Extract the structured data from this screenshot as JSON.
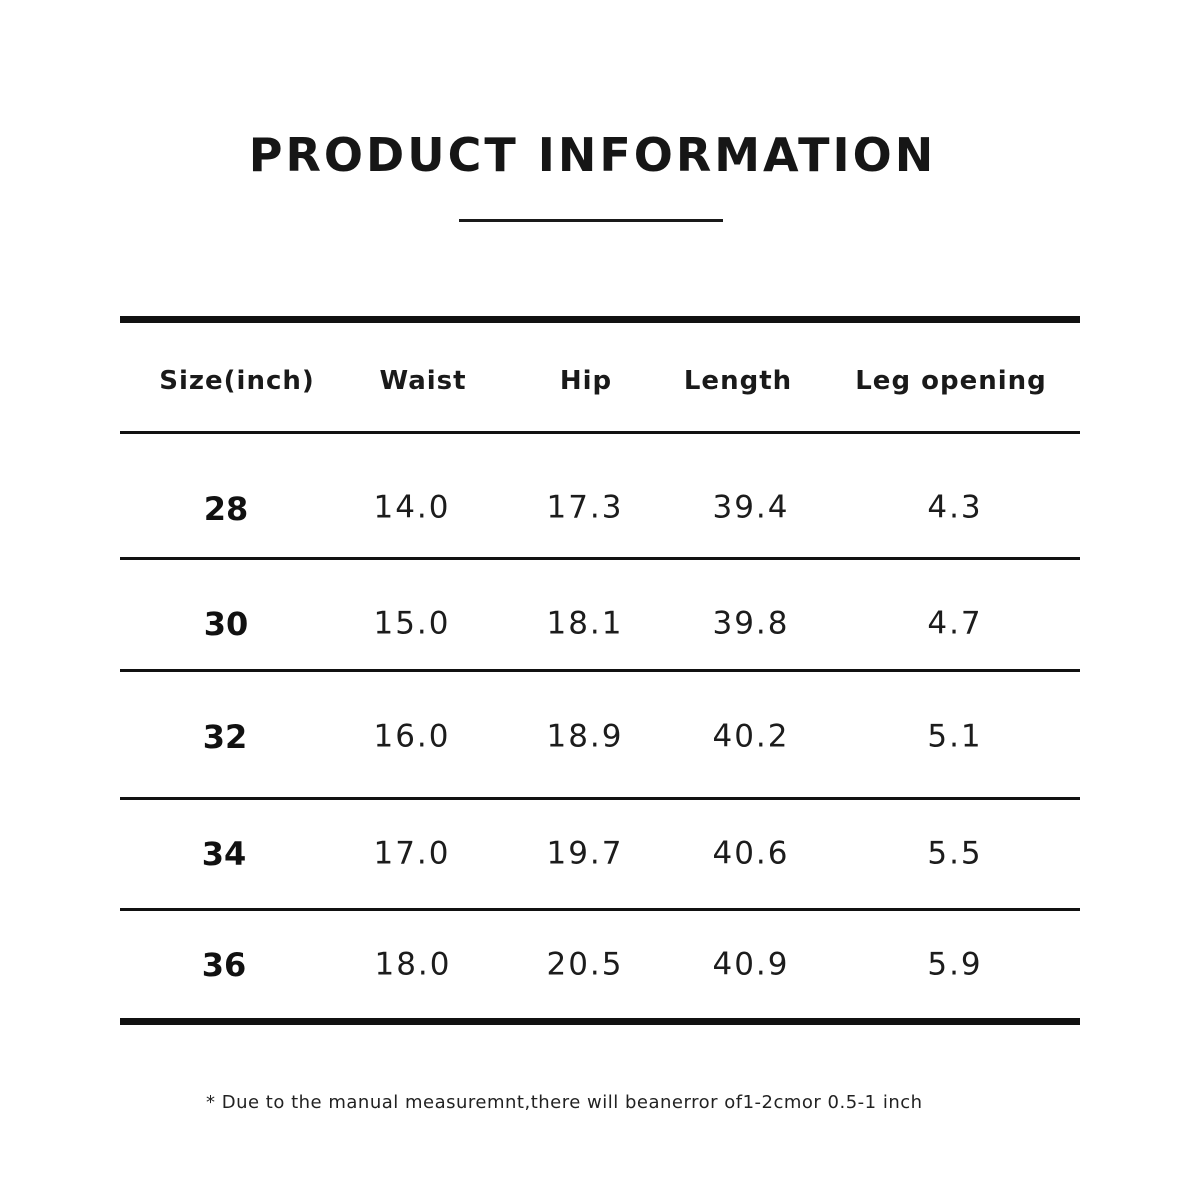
{
  "title": "PRODUCT INFORMATION",
  "table": {
    "headers": [
      "Size(inch)",
      "Waist",
      "Hip",
      "Length",
      "Leg opening"
    ],
    "rows": [
      [
        "28",
        "14.0",
        "17.3",
        "39.4",
        "4.3"
      ],
      [
        "30",
        "15.0",
        "18.1",
        "39.8",
        "4.7"
      ],
      [
        "32",
        "16.0",
        "18.9",
        "40.2",
        "5.1"
      ],
      [
        "34",
        "17.0",
        "19.7",
        "40.6",
        "5.5"
      ],
      [
        "36",
        "18.0",
        "20.5",
        "40.9",
        "5.9"
      ]
    ]
  },
  "footnote": "* Due to the manual measuremnt,there will beanerror of1-2cmor 0.5-1 inch"
}
